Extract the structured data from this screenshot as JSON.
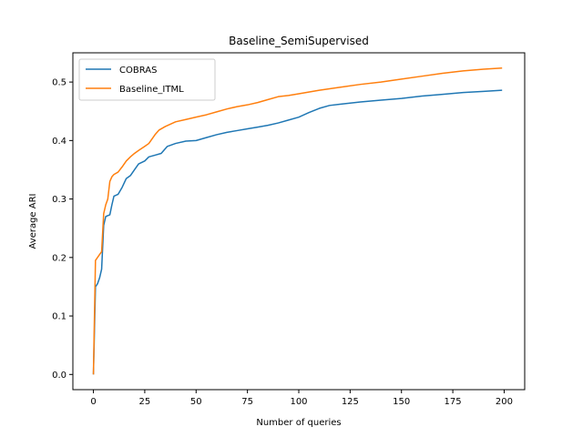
{
  "chart_data": {
    "type": "line",
    "title": "Baseline_SemiSupervised",
    "xlabel": "Number of queries",
    "ylabel": "Average ARI",
    "xlim": [
      -10,
      210
    ],
    "ylim": [
      -0.026,
      0.55
    ],
    "xticks": [
      0,
      25,
      50,
      75,
      100,
      125,
      150,
      175,
      200
    ],
    "xtick_labels": [
      "0",
      "25",
      "50",
      "75",
      "100",
      "125",
      "150",
      "175",
      "200"
    ],
    "yticks": [
      0.0,
      0.1,
      0.2,
      0.3,
      0.4,
      0.5
    ],
    "ytick_labels": [
      "0.0",
      "0.1",
      "0.2",
      "0.3",
      "0.4",
      "0.5"
    ],
    "grid": false,
    "legend_position": "top-left",
    "series": [
      {
        "name": "COBRAS",
        "color": "#1f77b4",
        "points": [
          [
            0,
            0.0
          ],
          [
            1,
            0.15
          ],
          [
            2,
            0.155
          ],
          [
            3,
            0.165
          ],
          [
            4,
            0.18
          ],
          [
            5,
            0.255
          ],
          [
            6,
            0.27
          ],
          [
            8,
            0.273
          ],
          [
            9,
            0.29
          ],
          [
            10,
            0.305
          ],
          [
            12,
            0.308
          ],
          [
            14,
            0.32
          ],
          [
            16,
            0.335
          ],
          [
            18,
            0.34
          ],
          [
            20,
            0.35
          ],
          [
            22,
            0.36
          ],
          [
            25,
            0.365
          ],
          [
            27,
            0.372
          ],
          [
            30,
            0.375
          ],
          [
            33,
            0.378
          ],
          [
            36,
            0.39
          ],
          [
            40,
            0.395
          ],
          [
            45,
            0.399
          ],
          [
            50,
            0.4
          ],
          [
            55,
            0.405
          ],
          [
            60,
            0.41
          ],
          [
            65,
            0.414
          ],
          [
            70,
            0.417
          ],
          [
            75,
            0.42
          ],
          [
            80,
            0.423
          ],
          [
            85,
            0.426
          ],
          [
            90,
            0.43
          ],
          [
            95,
            0.435
          ],
          [
            100,
            0.44
          ],
          [
            105,
            0.448
          ],
          [
            110,
            0.455
          ],
          [
            115,
            0.46
          ],
          [
            120,
            0.462
          ],
          [
            125,
            0.464
          ],
          [
            130,
            0.466
          ],
          [
            140,
            0.469
          ],
          [
            150,
            0.472
          ],
          [
            160,
            0.476
          ],
          [
            170,
            0.479
          ],
          [
            180,
            0.482
          ],
          [
            190,
            0.484
          ],
          [
            199,
            0.486
          ]
        ]
      },
      {
        "name": "Baseline_ITML",
        "color": "#ff7f0e",
        "points": [
          [
            0,
            0.0
          ],
          [
            1,
            0.195
          ],
          [
            2,
            0.2
          ],
          [
            3,
            0.205
          ],
          [
            4,
            0.21
          ],
          [
            5,
            0.275
          ],
          [
            6,
            0.29
          ],
          [
            7,
            0.3
          ],
          [
            8,
            0.33
          ],
          [
            9,
            0.338
          ],
          [
            10,
            0.342
          ],
          [
            12,
            0.346
          ],
          [
            14,
            0.355
          ],
          [
            16,
            0.365
          ],
          [
            18,
            0.372
          ],
          [
            20,
            0.378
          ],
          [
            22,
            0.383
          ],
          [
            25,
            0.39
          ],
          [
            27,
            0.395
          ],
          [
            30,
            0.41
          ],
          [
            32,
            0.418
          ],
          [
            35,
            0.424
          ],
          [
            40,
            0.432
          ],
          [
            45,
            0.436
          ],
          [
            50,
            0.44
          ],
          [
            55,
            0.444
          ],
          [
            60,
            0.449
          ],
          [
            65,
            0.454
          ],
          [
            70,
            0.458
          ],
          [
            75,
            0.461
          ],
          [
            80,
            0.465
          ],
          [
            85,
            0.47
          ],
          [
            90,
            0.475
          ],
          [
            95,
            0.477
          ],
          [
            100,
            0.48
          ],
          [
            110,
            0.486
          ],
          [
            120,
            0.491
          ],
          [
            130,
            0.496
          ],
          [
            140,
            0.5
          ],
          [
            150,
            0.505
          ],
          [
            160,
            0.51
          ],
          [
            170,
            0.515
          ],
          [
            180,
            0.519
          ],
          [
            190,
            0.522
          ],
          [
            199,
            0.524
          ]
        ]
      }
    ]
  }
}
